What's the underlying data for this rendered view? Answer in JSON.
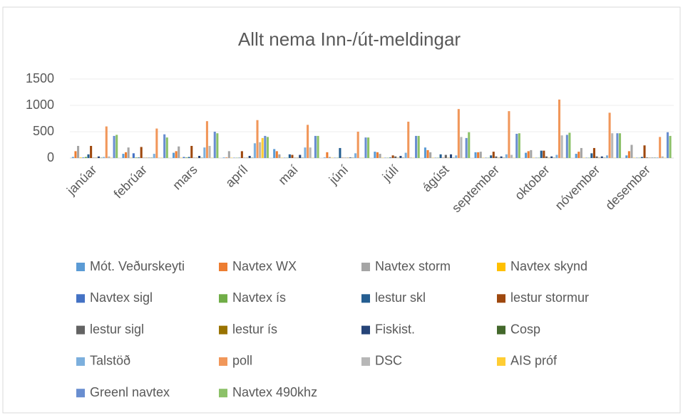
{
  "chart_data": {
    "type": "bar",
    "title": "Allt nema Inn-/út-meldingar",
    "categories": [
      "janúar",
      "febrúar",
      "mars",
      "apríl",
      "maí",
      "júní",
      "júlí",
      "ágúst",
      "september",
      "oktober",
      "nóvember",
      "desember"
    ],
    "series": [
      {
        "name": "Mót. Veðurskeyti",
        "color": "#5b9bd5",
        "values": [
          20,
          80,
          100,
          10,
          170,
          10,
          120,
          200,
          110,
          100,
          80,
          50
        ]
      },
      {
        "name": "Navtex WX",
        "color": "#ed7d31",
        "values": [
          130,
          110,
          130,
          10,
          130,
          110,
          110,
          150,
          110,
          130,
          120,
          130
        ]
      },
      {
        "name": "Navtex storm",
        "color": "#a5a5a5",
        "values": [
          230,
          200,
          220,
          130,
          70,
          20,
          80,
          110,
          120,
          150,
          190,
          250
        ]
      },
      {
        "name": "Navtex skynd",
        "color": "#ffc000",
        "values": [
          10,
          5,
          5,
          5,
          5,
          5,
          5,
          5,
          5,
          5,
          5,
          5
        ]
      },
      {
        "name": "Navtex sigl",
        "color": "#4472c4",
        "values": [
          10,
          90,
          20,
          5,
          5,
          5,
          5,
          5,
          5,
          5,
          5,
          5
        ]
      },
      {
        "name": "Navtex ís",
        "color": "#70ad47",
        "values": [
          20,
          10,
          10,
          5,
          5,
          5,
          5,
          5,
          5,
          5,
          5,
          5
        ]
      },
      {
        "name": "lestur skl",
        "color": "#255e91",
        "values": [
          70,
          10,
          20,
          5,
          70,
          190,
          10,
          70,
          50,
          140,
          90,
          20
        ]
      },
      {
        "name": "lestur stormur",
        "color": "#9e480e",
        "values": [
          230,
          210,
          230,
          130,
          60,
          5,
          50,
          5,
          120,
          140,
          190,
          240
        ]
      },
      {
        "name": "lestur sigl",
        "color": "#636363",
        "values": [
          5,
          5,
          5,
          5,
          5,
          5,
          30,
          60,
          30,
          30,
          30,
          10
        ]
      },
      {
        "name": "lestur ís",
        "color": "#997300",
        "values": [
          5,
          5,
          5,
          5,
          5,
          5,
          5,
          5,
          5,
          5,
          5,
          5
        ]
      },
      {
        "name": "Fiskist.",
        "color": "#264478",
        "values": [
          30,
          5,
          40,
          40,
          60,
          10,
          40,
          70,
          30,
          30,
          30,
          5
        ]
      },
      {
        "name": "Cosp",
        "color": "#43682b",
        "values": [
          5,
          5,
          5,
          5,
          5,
          5,
          5,
          5,
          5,
          5,
          5,
          5
        ]
      },
      {
        "name": "Talstöð",
        "color": "#7cafdd",
        "values": [
          20,
          80,
          200,
          280,
          200,
          90,
          100,
          50,
          70,
          60,
          50,
          10
        ]
      },
      {
        "name": "poll",
        "color": "#f1975a",
        "values": [
          600,
          560,
          700,
          720,
          630,
          500,
          690,
          930,
          890,
          1110,
          860,
          400
        ]
      },
      {
        "name": "DSC",
        "color": "#b7b7b7",
        "values": [
          30,
          5,
          230,
          300,
          200,
          5,
          10,
          400,
          60,
          430,
          470,
          30
        ]
      },
      {
        "name": "AIS próf",
        "color": "#ffcd33",
        "values": [
          5,
          5,
          5,
          380,
          5,
          5,
          5,
          5,
          5,
          5,
          5,
          5
        ]
      },
      {
        "name": "Greenl navtex",
        "color": "#698ed0",
        "values": [
          420,
          450,
          500,
          420,
          420,
          390,
          420,
          380,
          460,
          440,
          470,
          490
        ]
      },
      {
        "name": "Navtex 490khz",
        "color": "#8cc168",
        "values": [
          440,
          390,
          470,
          400,
          420,
          390,
          420,
          490,
          470,
          480,
          470,
          420
        ]
      }
    ],
    "ylim": [
      0,
      1500
    ],
    "yticks": [
      0,
      500,
      1000,
      1500
    ],
    "grid": true,
    "legend": "bottom"
  }
}
